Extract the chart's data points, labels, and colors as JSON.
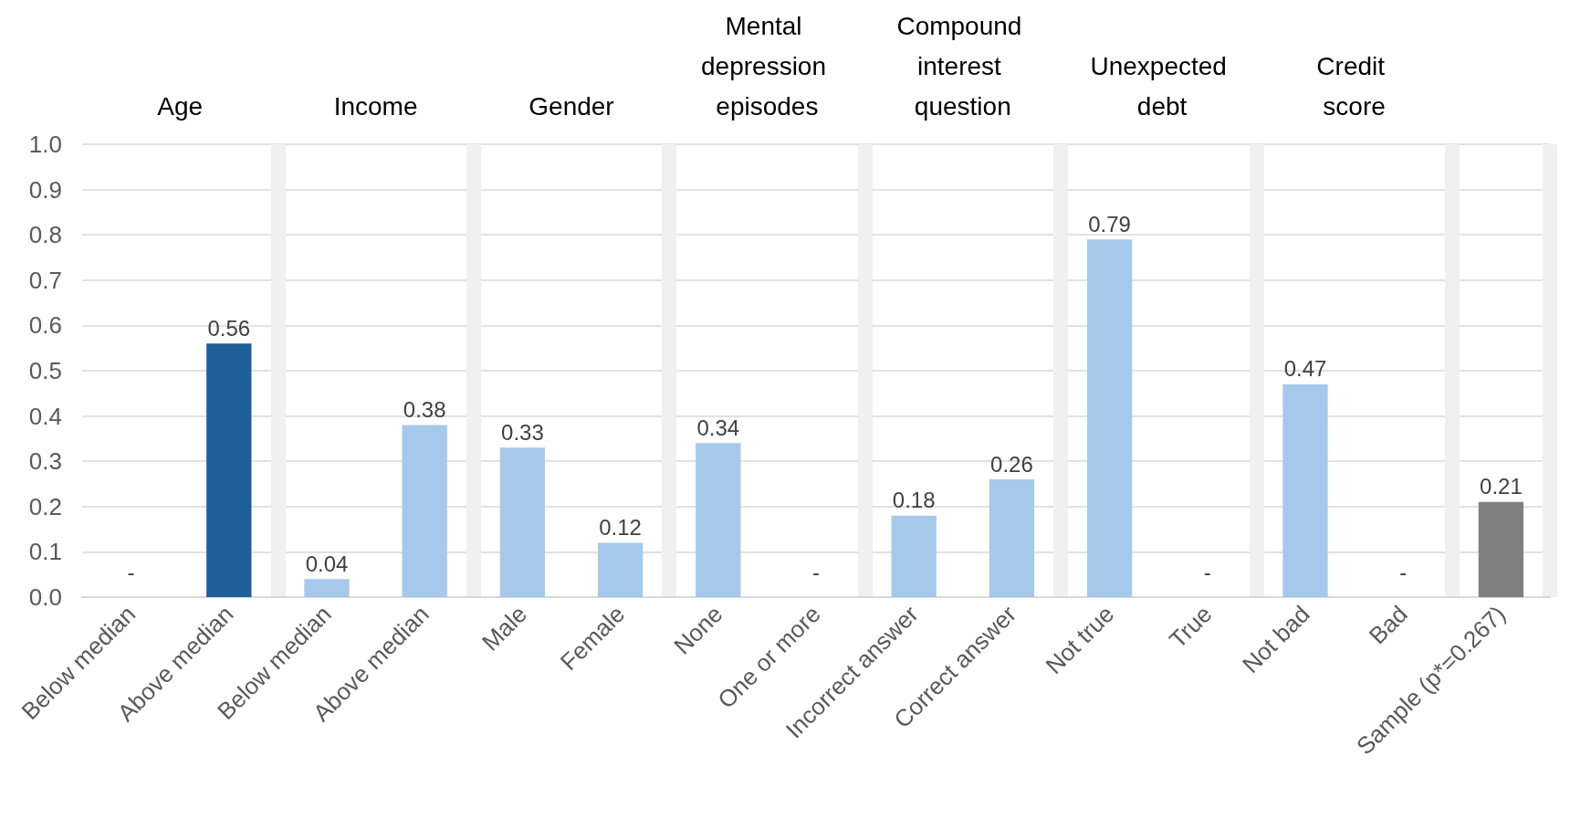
{
  "chart_data": {
    "type": "bar",
    "categories": [
      "Below median",
      "Above median",
      "Below median",
      "Above median",
      "Male",
      "Female",
      "None",
      "One or more",
      "Incorrect answer",
      "Correct answer",
      "Not true",
      "True",
      "Not bad",
      "Bad",
      "Sample (p*=0.267)"
    ],
    "values": [
      null,
      0.56,
      0.04,
      0.38,
      0.33,
      0.12,
      0.34,
      null,
      0.18,
      0.26,
      0.79,
      null,
      0.47,
      null,
      0.21
    ],
    "colors": [
      "#a6c9eb",
      "#1f5f99",
      "#a6c9eb",
      "#a6c9eb",
      "#a6c9eb",
      "#a6c9eb",
      "#a6c9eb",
      "#a6c9eb",
      "#a6c9eb",
      "#a6c9eb",
      "#a6c9eb",
      "#a6c9eb",
      "#a6c9eb",
      "#a6c9eb",
      "#808080"
    ],
    "value_labels": [
      "-",
      "0.56",
      "0.04",
      "0.38",
      "0.33",
      "0.12",
      "0.34",
      "-",
      "0.18",
      "0.26",
      "0.79",
      "-",
      "0.47",
      "-",
      "0.21"
    ],
    "annotations": [
      "Age",
      "Income",
      "Gender",
      "Mental depression episodes",
      "Compound interest question",
      "Unexpected debt",
      "Credit score"
    ],
    "ylim": [
      0,
      1.0
    ],
    "yticks": [
      {
        "value": 0,
        "label": "0.0"
      },
      0.1,
      0.2,
      0.3,
      0.4,
      0.5,
      0.6,
      0.7,
      0.8,
      0.9,
      {
        "value": 1.0,
        "label": "1.0"
      }
    ],
    "grid": "y"
  }
}
